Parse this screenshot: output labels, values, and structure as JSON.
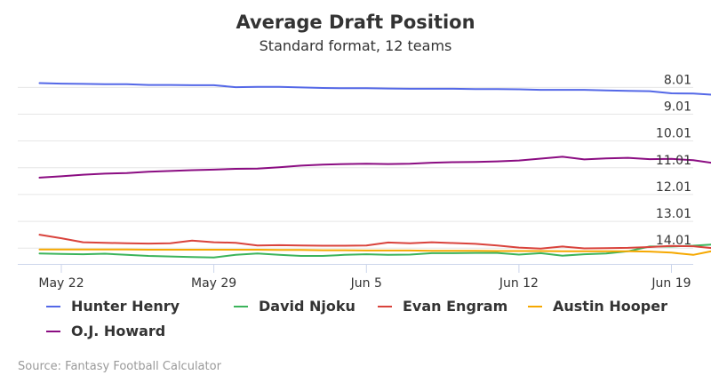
{
  "title": "Average Draft Position",
  "subtitle": "Standard format, 12 teams",
  "credits": "Source: Fantasy Football Calculator",
  "chart_data": {
    "type": "line",
    "title": "Average Draft Position",
    "subtitle": "Standard format, 12 teams",
    "x_ticks": [
      "May 22",
      "May 29",
      "Jun 5",
      "Jun 12",
      "Jun 19"
    ],
    "y_ticks": [
      "8.01",
      "9.01",
      "10.01",
      "11.01",
      "12.01",
      "13.01",
      "14.01"
    ],
    "y_axis": {
      "reversed": true,
      "range": [
        7.6,
        14.6
      ],
      "side": "right"
    },
    "x_range_days": [
      -1,
      30
    ],
    "grid": "horizontal",
    "legend_position": "bottom",
    "x": [
      "May 21",
      "May 22",
      "May 23",
      "May 24",
      "May 25",
      "May 26",
      "May 27",
      "May 28",
      "May 29",
      "May 30",
      "May 31",
      "Jun 1",
      "Jun 2",
      "Jun 3",
      "Jun 4",
      "Jun 5",
      "Jun 6",
      "Jun 7",
      "Jun 8",
      "Jun 9",
      "Jun 10",
      "Jun 11",
      "Jun 12",
      "Jun 13",
      "Jun 14",
      "Jun 15",
      "Jun 16",
      "Jun 17",
      "Jun 18",
      "Jun 19",
      "Jun 20",
      "Jun 21"
    ],
    "series": [
      {
        "name": "Hunter Henry",
        "color": "#5468e7",
        "values": [
          7.85,
          7.87,
          7.88,
          7.89,
          7.89,
          7.92,
          7.92,
          7.93,
          7.93,
          8.0,
          7.99,
          7.99,
          8.01,
          8.03,
          8.04,
          8.04,
          8.05,
          8.06,
          8.06,
          8.06,
          8.07,
          8.07,
          8.08,
          8.1,
          8.1,
          8.1,
          8.12,
          8.14,
          8.15,
          8.23,
          8.24,
          8.29
        ]
      },
      {
        "name": "David Njoku",
        "color": "#3cb45b",
        "values": [
          14.21,
          14.23,
          14.24,
          14.22,
          14.26,
          14.3,
          14.32,
          14.34,
          14.36,
          14.26,
          14.21,
          14.26,
          14.3,
          14.3,
          14.26,
          14.24,
          14.26,
          14.25,
          14.2,
          14.2,
          14.19,
          14.19,
          14.25,
          14.2,
          14.29,
          14.24,
          14.21,
          14.13,
          13.95,
          13.95,
          13.92,
          13.87
        ]
      },
      {
        "name": "Evan Engram",
        "color": "#d9433c",
        "values": [
          13.51,
          13.64,
          13.79,
          13.81,
          13.83,
          13.84,
          13.83,
          13.73,
          13.79,
          13.81,
          13.91,
          13.9,
          13.91,
          13.92,
          13.92,
          13.91,
          13.8,
          13.83,
          13.79,
          13.82,
          13.85,
          13.91,
          13.99,
          14.03,
          13.95,
          14.02,
          14.01,
          14.0,
          13.97,
          13.93,
          13.94,
          14.02
        ]
      },
      {
        "name": "Austin Hooper",
        "color": "#f6a800",
        "values": [
          14.06,
          14.06,
          14.06,
          14.06,
          14.06,
          14.07,
          14.07,
          14.07,
          14.07,
          14.07,
          14.07,
          14.08,
          14.08,
          14.09,
          14.09,
          14.1,
          14.1,
          14.1,
          14.11,
          14.11,
          14.11,
          14.12,
          14.12,
          14.12,
          14.13,
          14.13,
          14.13,
          14.13,
          14.14,
          14.18,
          14.26,
          14.1
        ]
      },
      {
        "name": "O.J. Howard",
        "color": "#8b0d82",
        "values": [
          11.38,
          11.33,
          11.27,
          11.23,
          11.21,
          11.16,
          11.13,
          11.1,
          11.08,
          11.05,
          11.04,
          10.99,
          10.93,
          10.89,
          10.87,
          10.86,
          10.87,
          10.86,
          10.82,
          10.8,
          10.79,
          10.77,
          10.74,
          10.67,
          10.6,
          10.7,
          10.66,
          10.64,
          10.69,
          10.68,
          10.73,
          10.84
        ]
      }
    ]
  }
}
